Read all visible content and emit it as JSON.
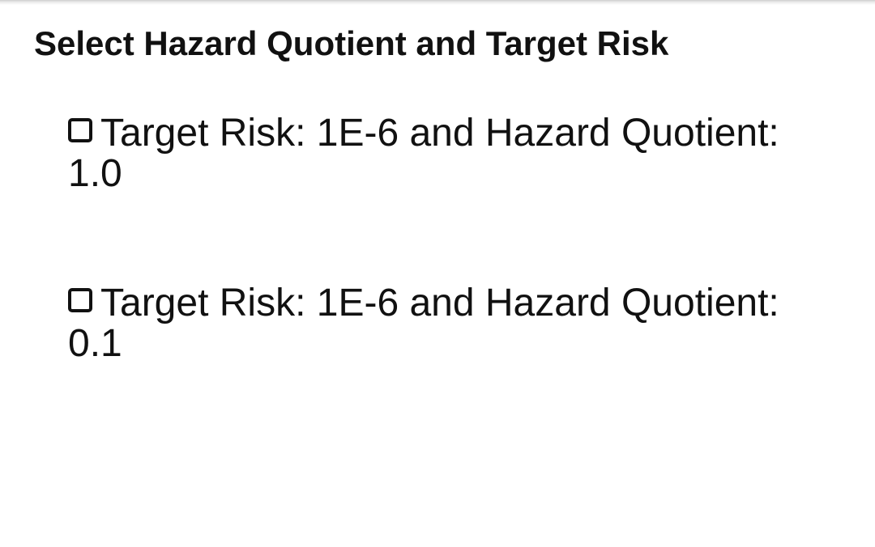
{
  "page": {
    "title": "Select Hazard Quotient and Target Risk"
  },
  "options": [
    {
      "line1": "Target Risk: 1E-6 and Hazard Quotient:",
      "line2": "1.0",
      "checked": false
    },
    {
      "line1": "Target Risk: 1E-6 and Hazard Quotient:",
      "line2": "0.1",
      "checked": false
    }
  ],
  "icons": {
    "checkbox": "checkbox-unchecked-icon"
  },
  "colors": {
    "background": "#ffffff",
    "text": "#111111"
  }
}
